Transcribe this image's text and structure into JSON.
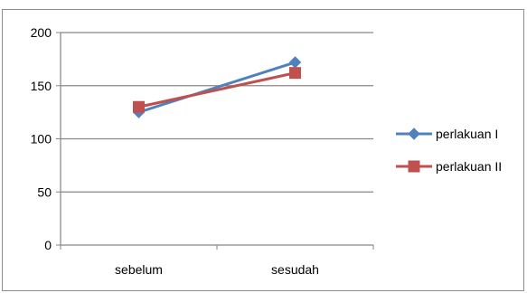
{
  "chart_data": {
    "type": "line",
    "categories": [
      "sebelum",
      "sesudah"
    ],
    "series": [
      {
        "name": "perlakuan I",
        "values": [
          125,
          172
        ],
        "color": "#4F81BD",
        "marker": "diamond"
      },
      {
        "name": "perlakuan II",
        "values": [
          130,
          162
        ],
        "color": "#C0504D",
        "marker": "square"
      }
    ],
    "title": "",
    "xlabel": "",
    "ylabel": "",
    "ylim": [
      0,
      200
    ],
    "yticks": [
      "0",
      "50",
      "100",
      "150",
      "200"
    ],
    "grid": true,
    "legend": "right"
  }
}
